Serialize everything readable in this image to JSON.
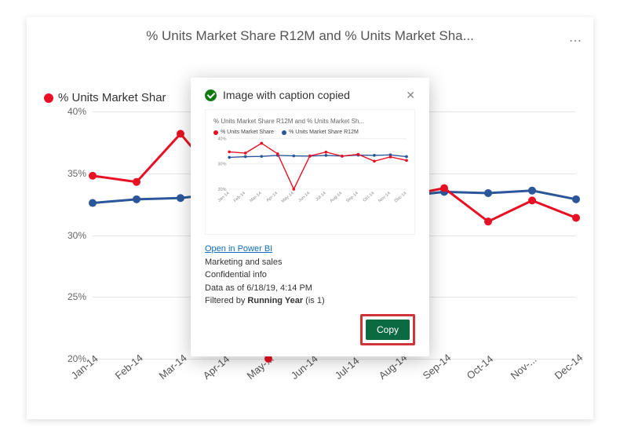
{
  "card": {
    "title": "% Units Market Share R12M and % Units Market Sha...",
    "legend_label": "% Units Market Shar",
    "mini_legend_red": "% Units Market Share",
    "mini_legend_blue": "% Units Market Share R12M"
  },
  "chart": {
    "type": "line",
    "colors": {
      "red": "#e81123",
      "blue": "#2b579a",
      "grid": "#e6e6e6",
      "bg": "#ffffff"
    },
    "line_width_red": 3,
    "line_width_blue": 3,
    "marker_size": 5,
    "ylim": [
      20,
      40
    ],
    "ytick_step": 5,
    "yticks": [
      "40%",
      "35%",
      "30%",
      "25%",
      "20%"
    ],
    "categories": [
      "Jan-14",
      "Feb-14",
      "Mar-14",
      "Apr-14",
      "May-...",
      "Jun-14",
      "Jul-14",
      "Aug-14",
      "Sep-14",
      "Oct-14",
      "Nov-...",
      "Dec-14"
    ],
    "categories_full": [
      "Jan-14",
      "Feb-14",
      "Mar-14",
      "Apr-14",
      "May-14",
      "Jun-14",
      "Jul-14",
      "Aug-14",
      "Sep-14",
      "Oct-14",
      "Nov-14",
      "Dec-14"
    ],
    "red": [
      34.8,
      34.3,
      38.2,
      34.0,
      20.0,
      33.2,
      34.7,
      33.1,
      33.8,
      31.1,
      32.8,
      31.4
    ],
    "blue": [
      32.6,
      32.9,
      33.0,
      33.4,
      33.2,
      33.1,
      33.4,
      33.1,
      33.5,
      33.4,
      33.6,
      32.9
    ]
  },
  "modal": {
    "title": "Image with caption copied",
    "thumb_title": "% Units Market Share R12M and % Units Market Sh...",
    "open_link": "Open in Power BI",
    "line1": "Marketing and sales",
    "line2": "Confidential info",
    "line3": "Data as of 6/18/19, 4:14 PM",
    "line4_prefix": "Filtered by ",
    "line4_bold": "Running Year",
    "line4_suffix": " (is 1)",
    "copy_label": "Copy"
  },
  "mini_chart": {
    "yticks": [
      "40%",
      "30%",
      "20%"
    ],
    "ylim": [
      20,
      40
    ],
    "red": [
      34.8,
      34.3,
      38.2,
      34.0,
      20.0,
      33.2,
      34.7,
      33.1,
      33.8,
      31.1,
      32.8,
      31.4
    ],
    "blue": [
      32.6,
      32.9,
      33.0,
      33.4,
      33.2,
      33.1,
      33.4,
      33.1,
      33.5,
      33.4,
      33.6,
      32.9
    ]
  }
}
